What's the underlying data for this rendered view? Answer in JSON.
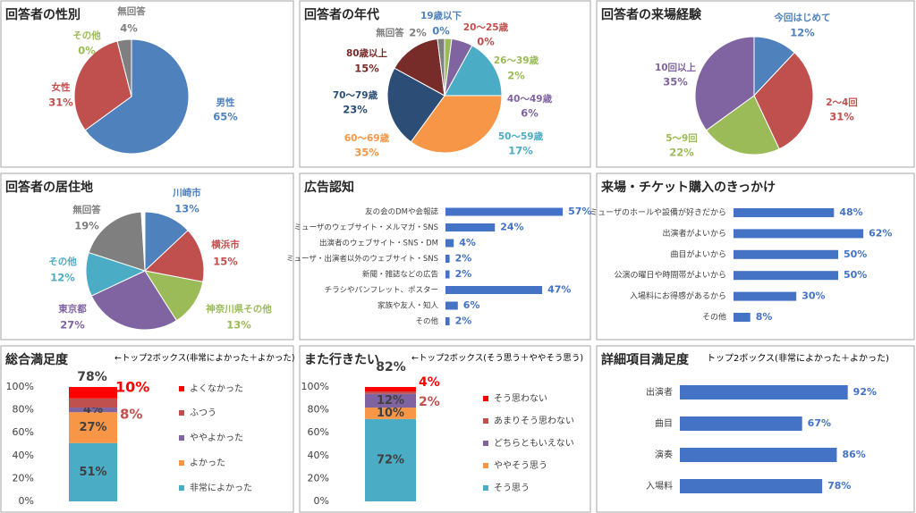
{
  "chart_data": [
    {
      "type": "pie",
      "title": "回答者の性別",
      "categories": [
        "男性",
        "女性",
        "その他",
        "無回答"
      ],
      "values": [
        65,
        31,
        0,
        4
      ],
      "value_labels": [
        "65%",
        "31%",
        "0%",
        "4%"
      ],
      "colors": [
        "#4f81bd",
        "#c0504d",
        "#9bbb59",
        "#7f7f7f"
      ]
    },
    {
      "type": "pie",
      "title": "回答者の年代",
      "categories": [
        "19歳以下",
        "20～25歳",
        "26～39歳",
        "40～49歳",
        "50～59歳",
        "60～69歳",
        "70～79歳",
        "80歳以上",
        "無回答"
      ],
      "values": [
        0,
        0,
        2,
        6,
        17,
        35,
        23,
        15,
        2
      ],
      "value_labels": [
        "0%",
        "0%",
        "2%",
        "6%",
        "17%",
        "35%",
        "23%",
        "15%",
        "2%"
      ],
      "colors": [
        "#4f81bd",
        "#c0504d",
        "#9bbb59",
        "#8064a2",
        "#4bacc6",
        "#f79646",
        "#2c4d75",
        "#772c2a",
        "#7f7f7f"
      ]
    },
    {
      "type": "pie",
      "title": "回答者の来場経験",
      "categories": [
        "今回はじめて",
        "2～4回",
        "5～9回",
        "10回以上"
      ],
      "values": [
        12,
        31,
        22,
        35
      ],
      "value_labels": [
        "12%",
        "31%",
        "22%",
        "35%"
      ],
      "colors": [
        "#4f81bd",
        "#c0504d",
        "#9bbb59",
        "#8064a2"
      ]
    },
    {
      "type": "pie",
      "title": "回答者の居住地",
      "categories": [
        "川崎市",
        "横浜市",
        "神奈川県その他",
        "東京都",
        "その他",
        "無回答"
      ],
      "values": [
        13,
        15,
        13,
        27,
        12,
        19
      ],
      "value_labels": [
        "13%",
        "15%",
        "13%",
        "27%",
        "12%",
        "19%"
      ],
      "colors": [
        "#4f81bd",
        "#c0504d",
        "#9bbb59",
        "#8064a2",
        "#4bacc6",
        "#7f7f7f"
      ]
    },
    {
      "type": "barh",
      "title": "広告認知",
      "categories": [
        "友の会のDMや会報誌",
        "ミューザのウェブサイト・メルマガ・SNS",
        "出演者のウェブサイト・SNS・DM",
        "ミューザ・出演者以外のウェブサイト・SNS",
        "新聞・雑誌などの広告",
        "チラシやパンフレット、ポスター",
        "家族や友人・知人",
        "その他"
      ],
      "values": [
        57,
        24,
        4,
        2,
        2,
        47,
        6,
        2
      ],
      "value_labels": [
        "57%",
        "24%",
        "4%",
        "2%",
        "2%",
        "47%",
        "6%",
        "2%"
      ],
      "color": "#4472c4"
    },
    {
      "type": "barh",
      "title": "来場・チケット購入のきっかけ",
      "categories": [
        "ミューザのホールや設備が好きだから",
        "出演者がよいから",
        "曲目がよいから",
        "公演の曜日や時間帯がよいから",
        "入場料にお得感があるから",
        "その他"
      ],
      "values": [
        48,
        62,
        50,
        50,
        30,
        8
      ],
      "value_labels": [
        "48%",
        "62%",
        "50%",
        "50%",
        "30%",
        "8%"
      ],
      "color": "#4472c4"
    },
    {
      "type": "stacked_bar",
      "title": "総合満足度",
      "subtitle": "←トップ2ボックス(非常によかった＋よかった)",
      "annotation": "78%",
      "ylim": [
        0,
        100
      ],
      "yticks": [
        {
          "value": 0,
          "label": "0%"
        },
        {
          "value": 20,
          "label": "20%"
        },
        {
          "value": 40,
          "label": "40%"
        },
        {
          "value": 60,
          "label": "60%"
        },
        {
          "value": 80,
          "label": "80%"
        },
        {
          "value": 100,
          "label": "100%"
        }
      ],
      "series": [
        {
          "name": "非常によかった",
          "color": "#4bacc6",
          "values": [
            51
          ],
          "value_labels": [
            "51%"
          ]
        },
        {
          "name": "よかった",
          "color": "#f79646",
          "values": [
            27
          ],
          "value_labels": [
            "27%"
          ]
        },
        {
          "name": "ややよかった",
          "color": "#8064a2",
          "values": [
            4
          ],
          "value_labels": [
            "4%"
          ]
        },
        {
          "name": "ふつう",
          "color": "#c0504d",
          "values": [
            8
          ],
          "value_labels": [
            "8%"
          ]
        },
        {
          "name": "よくなかった",
          "color": "#ff0000",
          "values": [
            10
          ],
          "value_labels": [
            "10%"
          ]
        }
      ]
    },
    {
      "type": "stacked_bar",
      "title": "また行きたい",
      "subtitle": "←トップ2ボックス(そう思う＋ややそう思う)",
      "annotation": "82%",
      "ylim": [
        0,
        100
      ],
      "yticks": [
        {
          "value": 0,
          "label": "0%"
        },
        {
          "value": 20,
          "label": "20%"
        },
        {
          "value": 40,
          "label": "40%"
        },
        {
          "value": 60,
          "label": "60%"
        },
        {
          "value": 80,
          "label": "80%"
        },
        {
          "value": 100,
          "label": "100%"
        }
      ],
      "series": [
        {
          "name": "そう思う",
          "color": "#4bacc6",
          "values": [
            72
          ],
          "value_labels": [
            "72%"
          ]
        },
        {
          "name": "ややそう思う",
          "color": "#f79646",
          "values": [
            10
          ],
          "value_labels": [
            "10%"
          ]
        },
        {
          "name": "どちらともいえない",
          "color": "#8064a2",
          "values": [
            12
          ],
          "value_labels": [
            "12%"
          ]
        },
        {
          "name": "あまりそう思わない",
          "color": "#c0504d",
          "values": [
            2
          ],
          "value_labels": [
            "2%"
          ]
        },
        {
          "name": "そう思わない",
          "color": "#ff0000",
          "values": [
            4
          ],
          "value_labels": [
            "4%"
          ]
        }
      ]
    },
    {
      "type": "barh",
      "title": "詳細項目満足度",
      "subtitle": "トップ2ボックス(非常によかった＋よかった)",
      "categories": [
        "出演者",
        "曲目",
        "演奏",
        "入場料"
      ],
      "values": [
        92,
        67,
        86,
        78
      ],
      "value_labels": [
        "92%",
        "67%",
        "86%",
        "78%"
      ],
      "color": "#4472c4"
    }
  ]
}
